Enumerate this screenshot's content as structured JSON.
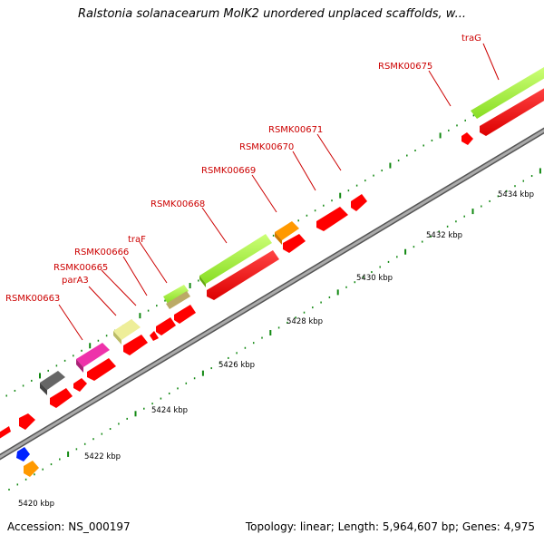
{
  "title": "Ralstonia solanacearum MolK2 unordered unplaced scaffolds, w...",
  "footer": {
    "accession": "Accession: NS_000197",
    "summary": "Topology: linear; Length: 5,964,607 bp; Genes: 4,975"
  },
  "ruler_labels": [
    "5420 kbp",
    "5422 kbp",
    "5424 kbp",
    "5426 kbp",
    "5428 kbp",
    "5430 kbp",
    "5432 kbp",
    "5434 kbp"
  ],
  "gene_labels": [
    "RSMK00663",
    "parA3",
    "RSMK00665",
    "RSMK00666",
    "traF",
    "RSMK00668",
    "RSMK00669",
    "RSMK00670",
    "RSMK00671",
    "RSMK00675",
    "traG"
  ],
  "colors": {
    "gene_red": "#ff0000",
    "lime": "#99ee33",
    "magenta": "#ee33aa",
    "khaki": "#eeee99",
    "gray": "#666666",
    "orange": "#ff9900",
    "blue": "#0022ff",
    "olive": "#bbaa66",
    "tick_green": "#118811",
    "backbone": "#888888"
  }
}
